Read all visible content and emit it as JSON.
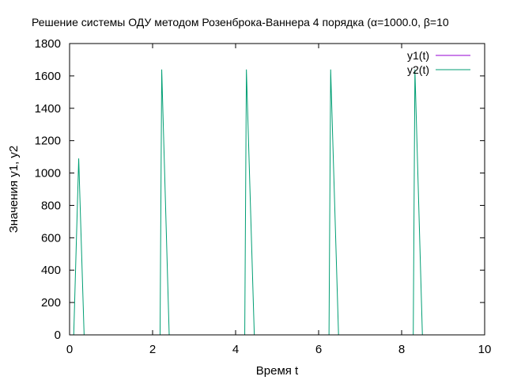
{
  "chart_data": {
    "type": "line",
    "title": "Решение системы ОДУ методом Розенброка-Ваннера 4 порядка (α=1000.0, β=10",
    "xlabel": "Время t",
    "ylabel": "Значения y1, y2",
    "xlim": [
      0,
      10
    ],
    "ylim": [
      0,
      1800
    ],
    "xticks": [
      0,
      2,
      4,
      6,
      8,
      10
    ],
    "yticks": [
      0,
      200,
      400,
      600,
      800,
      1000,
      1200,
      1400,
      1600,
      1800
    ],
    "grid": false,
    "legend_position": "top-right",
    "series": [
      {
        "name": "y1(t)",
        "color": "#9400d3",
        "x": [
          0,
          10
        ],
        "y": [
          0,
          0
        ]
      },
      {
        "name": "y2(t)",
        "color": "#009e73",
        "x": [
          0,
          0.1,
          0.22,
          0.35,
          2.18,
          2.22,
          2.4,
          4.22,
          4.26,
          4.45,
          6.25,
          6.29,
          6.48,
          8.28,
          8.32,
          8.5,
          10
        ],
        "y": [
          0,
          0,
          1090,
          0,
          0,
          1640,
          0,
          0,
          1640,
          0,
          0,
          1640,
          0,
          0,
          1640,
          0,
          0
        ]
      }
    ]
  }
}
